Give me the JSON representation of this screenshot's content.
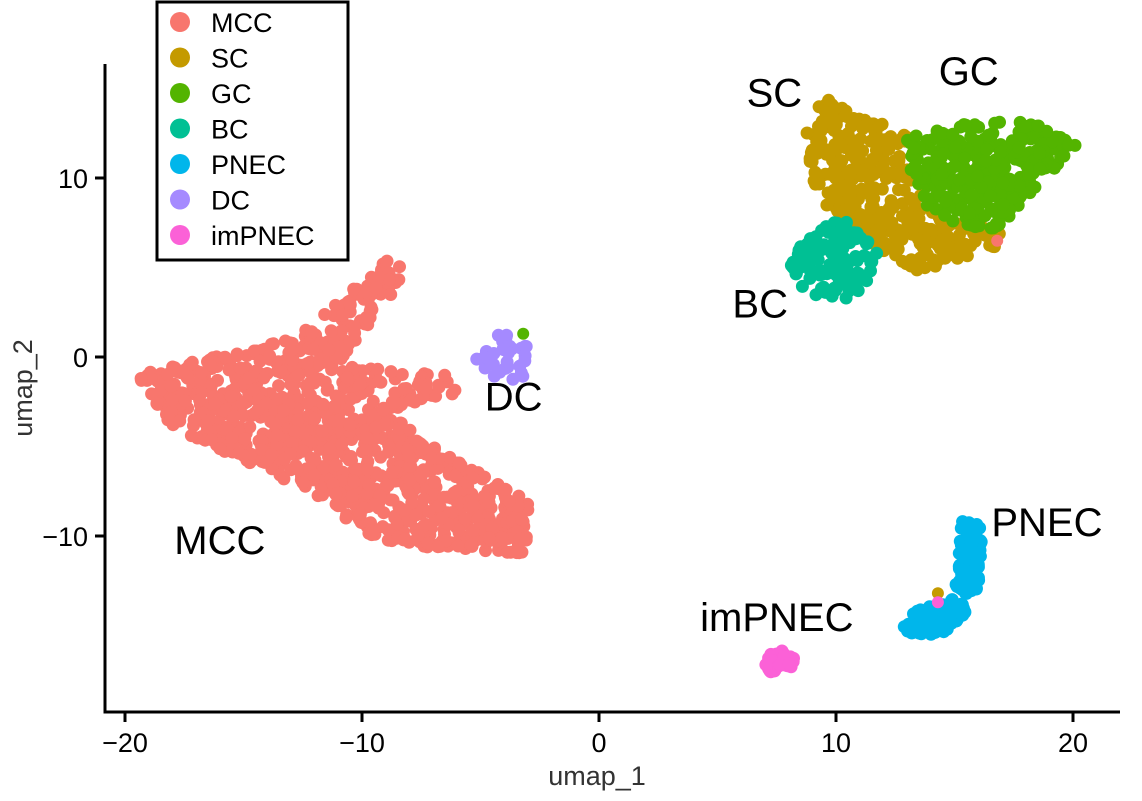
{
  "chart_data": {
    "type": "scatter",
    "xlabel": "umap_1",
    "ylabel": "umap_2",
    "xlim": [
      -21,
      22
    ],
    "ylim": [
      -19,
      16.5
    ],
    "x_ticks": [
      -20,
      -10,
      0,
      10,
      20
    ],
    "x_tick_labels": [
      "−20",
      "−10",
      "0",
      "10",
      "20"
    ],
    "y_ticks": [
      -10,
      0,
      10
    ],
    "y_tick_labels": [
      "−10",
      "0",
      "10"
    ],
    "legend": [
      "MCC",
      "SC",
      "GC",
      "BC",
      "PNEC",
      "DC",
      "imPNEC"
    ],
    "legend_position": "top-left",
    "colors": {
      "MCC": "#F8766D",
      "SC": "#C49A00",
      "GC": "#53B400",
      "BC": "#00C094",
      "PNEC": "#00B6EB",
      "DC": "#A58AFF",
      "imPNEC": "#FB61D7"
    },
    "clusters": [
      {
        "name": "MCC",
        "label": "MCC",
        "label_at": [
          -16,
          -11
        ],
        "approx_points": 1100,
        "region": [
          [
            -19.5,
            -1
          ],
          [
            -13,
            1
          ],
          [
            -9,
            5.5
          ],
          [
            -8,
            4.8
          ],
          [
            -11,
            -0.5
          ],
          [
            -6.5,
            -1
          ],
          [
            -6,
            -2
          ],
          [
            -9,
            -3
          ],
          [
            -7,
            -5
          ],
          [
            -3,
            -8
          ],
          [
            -3,
            -11
          ],
          [
            -9,
            -10.5
          ],
          [
            -13,
            -7
          ],
          [
            -18,
            -4
          ]
        ]
      },
      {
        "name": "SC",
        "label": "SC",
        "label_at": [
          7.4,
          14
        ],
        "approx_points": 320,
        "region": [
          [
            8.6,
            12.5
          ],
          [
            9.5,
            14.5
          ],
          [
            10.8,
            13.5
          ],
          [
            13,
            12.6
          ],
          [
            13.2,
            9.5
          ],
          [
            14.5,
            8
          ],
          [
            17,
            7
          ],
          [
            16.8,
            6
          ],
          [
            13.5,
            4.8
          ],
          [
            12,
            5.5
          ],
          [
            10.5,
            7.8
          ],
          [
            9.5,
            8.5
          ],
          [
            9,
            10
          ]
        ]
      },
      {
        "name": "GC",
        "label": "GC",
        "label_at": [
          15.6,
          15.2
        ],
        "approx_points": 330,
        "region": [
          [
            13,
            12.3
          ],
          [
            16,
            13.2
          ],
          [
            18.5,
            13.2
          ],
          [
            20.2,
            12
          ],
          [
            18.8,
            9.8
          ],
          [
            17.5,
            8.2
          ],
          [
            16.8,
            7
          ],
          [
            15,
            7.5
          ],
          [
            13.8,
            8.5
          ],
          [
            13.2,
            10
          ]
        ]
      },
      {
        "name": "BC",
        "label": "BC",
        "label_at": [
          6.8,
          2.2
        ],
        "approx_points": 110,
        "region": [
          [
            8.2,
            5.8
          ],
          [
            9.3,
            7.2
          ],
          [
            10.4,
            7.8
          ],
          [
            11.8,
            6
          ],
          [
            11.3,
            4
          ],
          [
            10.4,
            3
          ],
          [
            9,
            3.3
          ],
          [
            8,
            4.5
          ]
        ]
      },
      {
        "name": "PNEC",
        "label": "PNEC",
        "label_at": [
          18.9,
          -10
        ],
        "approx_points": 190,
        "region": [
          [
            12.8,
            -15
          ],
          [
            13.5,
            -14
          ],
          [
            15,
            -13.5
          ],
          [
            15.3,
            -9
          ],
          [
            16.2,
            -9.5
          ],
          [
            16,
            -13
          ],
          [
            15.5,
            -14.3
          ],
          [
            14.5,
            -15.5
          ],
          [
            13,
            -15.5
          ]
        ]
      },
      {
        "name": "DC",
        "label": "DC",
        "label_at": [
          -3.6,
          -3
        ],
        "approx_points": 30,
        "region": [
          [
            -5.3,
            -0.3
          ],
          [
            -4.2,
            1.6
          ],
          [
            -3.4,
            1.4
          ],
          [
            -2.8,
            0
          ],
          [
            -3.2,
            -1.3
          ],
          [
            -4.6,
            -1.2
          ]
        ]
      },
      {
        "name": "imPNEC",
        "label": "imPNEC",
        "label_at": [
          7.5,
          -15.3
        ],
        "approx_points": 40,
        "region": [
          [
            6.8,
            -17
          ],
          [
            7.4,
            -16.3
          ],
          [
            8.3,
            -16.6
          ],
          [
            8.1,
            -17.4
          ],
          [
            7.2,
            -17.6
          ]
        ]
      }
    ]
  }
}
